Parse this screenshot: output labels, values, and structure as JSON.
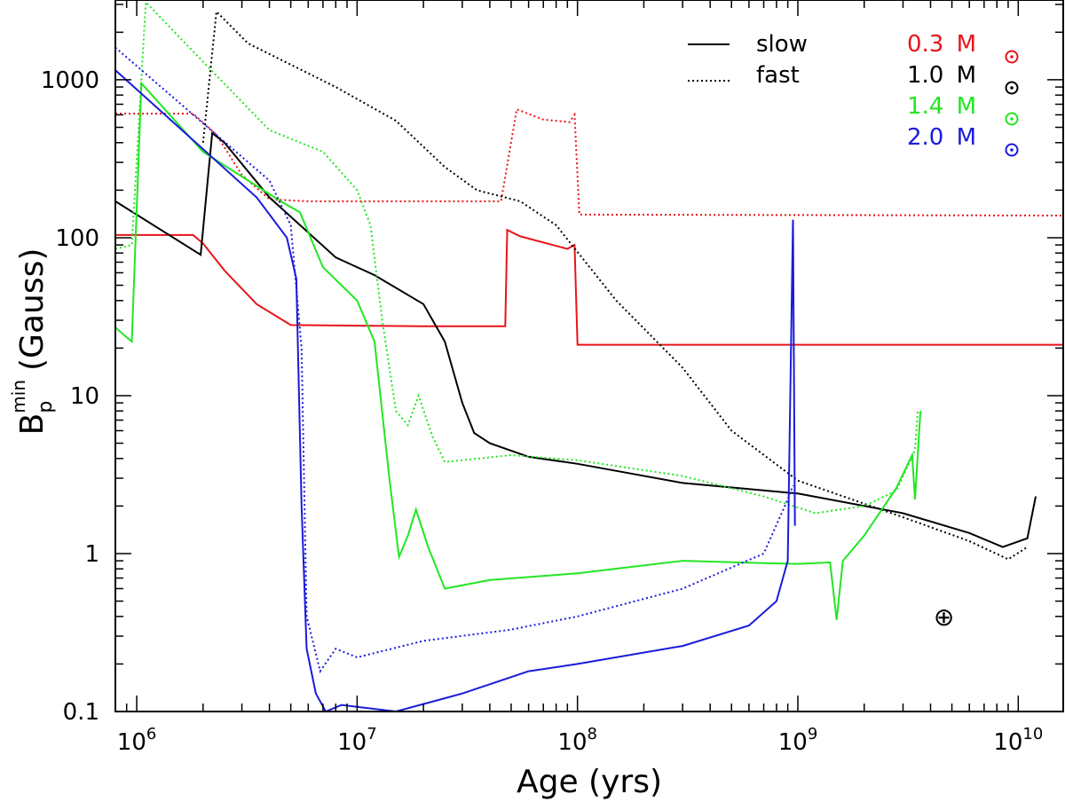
{
  "chart_data": {
    "type": "line",
    "title": "",
    "xlabel": "Age (yrs)",
    "ylabel_main": "B",
    "ylabel_sub": "p",
    "ylabel_sup": "min",
    "ylabel_unit": "(Gauss)",
    "xscale": "log",
    "yscale": "log",
    "xlim": [
      800000,
      16000000000
    ],
    "ylim": [
      0.1,
      3200
    ],
    "x_ticks": [
      {
        "value": 1000000,
        "base": "10",
        "exp": "6"
      },
      {
        "value": 10000000,
        "base": "10",
        "exp": "7"
      },
      {
        "value": 100000000,
        "base": "10",
        "exp": "8"
      },
      {
        "value": 1000000000,
        "base": "10",
        "exp": "9"
      },
      {
        "value": 10000000000,
        "base": "10",
        "exp": "10"
      }
    ],
    "y_ticks": [
      {
        "value": 0.1,
        "label": "0.1"
      },
      {
        "value": 1,
        "label": "1"
      },
      {
        "value": 10,
        "label": "10"
      },
      {
        "value": 100,
        "label": "100"
      },
      {
        "value": 1000,
        "label": "1000"
      }
    ],
    "legend_styles": [
      {
        "label": "slow",
        "style": "solid"
      },
      {
        "label": "fast",
        "style": "dotted"
      }
    ],
    "legend_masses": [
      {
        "value": "0.3",
        "unit": "M",
        "color": "#e8141a"
      },
      {
        "value": "1.0",
        "unit": "M",
        "color": "#000000"
      },
      {
        "value": "1.4",
        "unit": "M",
        "color": "#22e622"
      },
      {
        "value": "2.0",
        "unit": "M",
        "color": "#1a1adb"
      }
    ],
    "marker": {
      "symbol": "⊕",
      "x": 4600000000,
      "y": 0.4
    },
    "series": [
      {
        "name": "0.3 slow",
        "color": "#e8141a",
        "style": "solid",
        "points": [
          [
            800000,
            104
          ],
          [
            1800000,
            104
          ],
          [
            2000000,
            92
          ],
          [
            2500000,
            62
          ],
          [
            3500000,
            38
          ],
          [
            5000000,
            28
          ],
          [
            20000000,
            27.5
          ],
          [
            47000000,
            27.5
          ],
          [
            48000000,
            112
          ],
          [
            55000000,
            102
          ],
          [
            90000000,
            85
          ],
          [
            97000000,
            90
          ],
          [
            100000000,
            21
          ],
          [
            16000000000,
            21
          ]
        ]
      },
      {
        "name": "0.3 fast",
        "color": "#e8141a",
        "style": "dotted",
        "points": [
          [
            800000,
            610
          ],
          [
            1800000,
            610
          ],
          [
            2300000,
            450
          ],
          [
            3000000,
            250
          ],
          [
            4000000,
            175
          ],
          [
            6000000,
            170
          ],
          [
            45000000,
            170
          ],
          [
            53000000,
            650
          ],
          [
            70000000,
            560
          ],
          [
            92000000,
            540
          ],
          [
            97000000,
            600
          ],
          [
            102000000,
            140
          ],
          [
            16000000000,
            138
          ]
        ]
      },
      {
        "name": "1.0 slow",
        "color": "#000000",
        "style": "solid",
        "points": [
          [
            800000,
            170
          ],
          [
            1950000,
            78
          ],
          [
            2200000,
            460
          ],
          [
            2500000,
            400
          ],
          [
            4000000,
            180
          ],
          [
            8000000,
            75
          ],
          [
            12000000,
            58
          ],
          [
            20000000,
            38
          ],
          [
            25000000,
            22
          ],
          [
            30000000,
            9
          ],
          [
            34000000,
            5.8
          ],
          [
            40000000,
            5
          ],
          [
            60000000,
            4.1
          ],
          [
            100000000,
            3.7
          ],
          [
            300000000,
            2.8
          ],
          [
            1000000000,
            2.4
          ],
          [
            3000000000,
            1.8
          ],
          [
            6000000000,
            1.35
          ],
          [
            8500000000,
            1.1
          ],
          [
            11000000000,
            1.25
          ],
          [
            12000000000,
            2.3
          ]
        ]
      },
      {
        "name": "1.0 fast",
        "color": "#000000",
        "style": "dotted",
        "points": [
          [
            2000000,
            400
          ],
          [
            2300000,
            2700
          ],
          [
            3200000,
            1700
          ],
          [
            8000000,
            900
          ],
          [
            15000000,
            550
          ],
          [
            25000000,
            280
          ],
          [
            35000000,
            200
          ],
          [
            55000000,
            170
          ],
          [
            80000000,
            120
          ],
          [
            150000000,
            40
          ],
          [
            300000000,
            15
          ],
          [
            500000000,
            6
          ],
          [
            1000000000,
            2.9
          ],
          [
            3000000000,
            1.7
          ],
          [
            6000000000,
            1.2
          ],
          [
            9000000000,
            0.92
          ],
          [
            11000000000,
            1.1
          ]
        ]
      },
      {
        "name": "1.4 slow",
        "color": "#22e622",
        "style": "solid",
        "points": [
          [
            800000,
            27
          ],
          [
            950000,
            22
          ],
          [
            1050000,
            950
          ],
          [
            2000000,
            350
          ],
          [
            4500000,
            170
          ],
          [
            5500000,
            145
          ],
          [
            7000000,
            65
          ],
          [
            10000000,
            40
          ],
          [
            12000000,
            22
          ],
          [
            14000000,
            3
          ],
          [
            15500000,
            0.95
          ],
          [
            17000000,
            1.3
          ],
          [
            18500000,
            1.9
          ],
          [
            21000000,
            1.1
          ],
          [
            25000000,
            0.6
          ],
          [
            40000000,
            0.68
          ],
          [
            100000000,
            0.75
          ],
          [
            300000000,
            0.9
          ],
          [
            700000000,
            0.87
          ],
          [
            1000000000,
            0.86
          ],
          [
            1400000000,
            0.88
          ],
          [
            1500000000,
            0.38
          ],
          [
            1600000000,
            0.9
          ],
          [
            2000000000,
            1.3
          ],
          [
            2800000000,
            2.6
          ],
          [
            3300000000,
            4.2
          ],
          [
            3400000000,
            2.2
          ],
          [
            3600000000,
            8
          ]
        ]
      },
      {
        "name": "1.4 fast",
        "color": "#22e622",
        "style": "dotted",
        "points": [
          [
            800000,
            85
          ],
          [
            950000,
            90
          ],
          [
            1100000,
            3100
          ],
          [
            1900000,
            1400
          ],
          [
            4000000,
            480
          ],
          [
            7000000,
            350
          ],
          [
            10000000,
            200
          ],
          [
            11500000,
            120
          ],
          [
            13000000,
            30
          ],
          [
            15000000,
            8
          ],
          [
            17000000,
            6.5
          ],
          [
            19000000,
            10
          ],
          [
            22000000,
            5.5
          ],
          [
            25000000,
            3.8
          ],
          [
            50000000,
            4.2
          ],
          [
            100000000,
            3.9
          ],
          [
            300000000,
            3.1
          ],
          [
            700000000,
            2.3
          ],
          [
            1200000000,
            1.8
          ],
          [
            2000000000,
            2.0
          ],
          [
            2800000000,
            2.5
          ],
          [
            3400000000,
            4.5
          ],
          [
            3500000000,
            8
          ]
        ]
      },
      {
        "name": "2.0 slow",
        "color": "#1a1adb",
        "style": "solid",
        "points": [
          [
            800000,
            1150
          ],
          [
            3500000,
            180
          ],
          [
            4800000,
            100
          ],
          [
            5300000,
            55
          ],
          [
            5600000,
            2
          ],
          [
            5900000,
            0.25
          ],
          [
            6500000,
            0.13
          ],
          [
            7200000,
            0.1
          ],
          [
            8500000,
            0.11
          ],
          [
            15000000,
            0.1
          ],
          [
            30000000,
            0.13
          ],
          [
            60000000,
            0.18
          ],
          [
            100000000,
            0.2
          ],
          [
            300000000,
            0.26
          ],
          [
            600000000,
            0.35
          ],
          [
            800000000,
            0.5
          ],
          [
            900000000,
            0.9
          ],
          [
            950000000,
            130
          ],
          [
            970000000,
            1.5
          ]
        ]
      },
      {
        "name": "2.0 fast",
        "color": "#1a1adb",
        "style": "dotted",
        "points": [
          [
            800000,
            1600
          ],
          [
            4000000,
            230
          ],
          [
            5000000,
            120
          ],
          [
            5600000,
            20
          ],
          [
            5900000,
            0.4
          ],
          [
            6800000,
            0.18
          ],
          [
            8000000,
            0.25
          ],
          [
            10000000,
            0.22
          ],
          [
            20000000,
            0.28
          ],
          [
            50000000,
            0.33
          ],
          [
            100000000,
            0.4
          ],
          [
            300000000,
            0.6
          ],
          [
            700000000,
            1.0
          ],
          [
            900000000,
            2.2
          ],
          [
            950000000,
            2.7
          ]
        ]
      }
    ]
  }
}
